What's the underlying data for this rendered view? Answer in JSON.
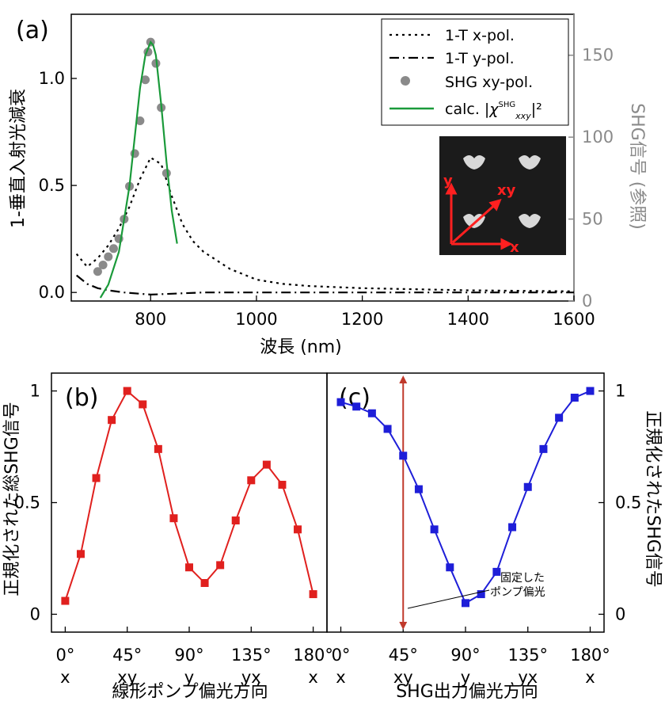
{
  "chart_data": [
    {
      "panel": "(a)",
      "type": "line",
      "xlabel": "波長 (nm)",
      "ylabel": "1-垂直入射光減衰",
      "y2label": "SHG信号 (参照)",
      "xlim": [
        650,
        1600
      ],
      "ylim": [
        -0.04,
        1.3
      ],
      "y2lim": [
        0,
        175
      ],
      "xticks": [
        "800",
        "1000",
        "1200",
        "1400",
        "1600"
      ],
      "yticks": [
        "0.0",
        "0.5",
        "1.0"
      ],
      "y2ticks": [
        "0",
        "50",
        "100",
        "150"
      ],
      "legend_position": "top-right",
      "series": [
        {
          "name": "1-T x-pol.",
          "style": "dotted",
          "color": "#000000",
          "x": [
            660,
            680,
            700,
            720,
            740,
            760,
            780,
            800,
            820,
            840,
            860,
            880,
            900,
            950,
            1000,
            1050,
            1100,
            1200,
            1400,
            1600
          ],
          "y": [
            0.18,
            0.12,
            0.16,
            0.22,
            0.3,
            0.4,
            0.53,
            0.63,
            0.6,
            0.45,
            0.32,
            0.24,
            0.19,
            0.11,
            0.06,
            0.04,
            0.03,
            0.02,
            0.01,
            0.005
          ]
        },
        {
          "name": "1-T y-pol.",
          "style": "dashdot",
          "color": "#000000",
          "x": [
            660,
            680,
            700,
            720,
            750,
            800,
            900,
            1000,
            1200,
            1400,
            1600
          ],
          "y": [
            0.08,
            0.04,
            0.02,
            0.01,
            0.0,
            -0.01,
            0.0,
            0.0,
            0.0,
            0.0,
            0.0
          ]
        },
        {
          "name": "SHG xy-pol.",
          "style": "markers",
          "color": "#8a8a8a",
          "axis": "right",
          "x": [
            700,
            710,
            720,
            730,
            740,
            750,
            760,
            770,
            780,
            790,
            795,
            800,
            810,
            820,
            830
          ],
          "y": [
            18,
            22,
            27,
            32,
            38,
            50,
            70,
            90,
            110,
            135,
            152,
            158,
            145,
            118,
            78
          ]
        },
        {
          "name": "calc. |χ|²",
          "style": "solid",
          "color": "#1a9a3a",
          "axis": "right",
          "x": [
            705,
            720,
            740,
            760,
            770,
            780,
            790,
            800,
            805,
            810,
            820,
            830,
            840,
            850
          ],
          "y": [
            2,
            10,
            30,
            70,
            100,
            130,
            150,
            158,
            156,
            150,
            120,
            85,
            55,
            35
          ]
        }
      ],
      "inset_labels": {
        "y": "y",
        "xy": "xy",
        "x": "x"
      }
    },
    {
      "panel": "(b)",
      "type": "line",
      "xlabel": "線形ポンプ偏光方向",
      "ylabel": "正規化された総SHG信号",
      "xlim": [
        -10,
        190
      ],
      "ylim": [
        -0.08,
        1.08
      ],
      "xticks": [
        "0°",
        "45°",
        "90°",
        "135°",
        "180°"
      ],
      "xticks2": [
        "x",
        "xy",
        "y",
        "yx",
        "x"
      ],
      "yticks": [
        "0",
        "0.5",
        "1"
      ],
      "color": "#e0201e",
      "x": [
        0,
        11.25,
        22.5,
        33.75,
        45,
        56.25,
        67.5,
        78.75,
        90,
        101.25,
        112.5,
        123.75,
        135,
        146.25,
        157.5,
        168.75,
        180
      ],
      "y": [
        0.06,
        0.27,
        0.61,
        0.87,
        1.0,
        0.94,
        0.74,
        0.43,
        0.21,
        0.14,
        0.22,
        0.42,
        0.6,
        0.67,
        0.58,
        0.38,
        0.09
      ]
    },
    {
      "panel": "(c)",
      "type": "line",
      "xlabel": "SHG出力偏光方向",
      "ylabel": "正規化されたSHG信号",
      "xlim": [
        -10,
        190
      ],
      "ylim": [
        -0.08,
        1.08
      ],
      "xticks": [
        "0°",
        "45°",
        "90°",
        "135°",
        "180°"
      ],
      "xticks2": [
        "x",
        "xy",
        "y",
        "yx",
        "x"
      ],
      "yticks": [
        "0",
        "0.5",
        "1"
      ],
      "color": "#1e1ed8",
      "x": [
        0,
        11.25,
        22.5,
        33.75,
        45,
        56.25,
        67.5,
        78.75,
        90,
        101.25,
        112.5,
        123.75,
        135,
        146.25,
        157.5,
        168.75,
        180
      ],
      "y": [
        0.95,
        0.93,
        0.9,
        0.83,
        0.71,
        0.56,
        0.38,
        0.21,
        0.05,
        0.09,
        0.19,
        0.39,
        0.57,
        0.74,
        0.88,
        0.97,
        1.0
      ],
      "annotation": "固定した\nポンプ偏光",
      "marker_x": 45
    }
  ]
}
